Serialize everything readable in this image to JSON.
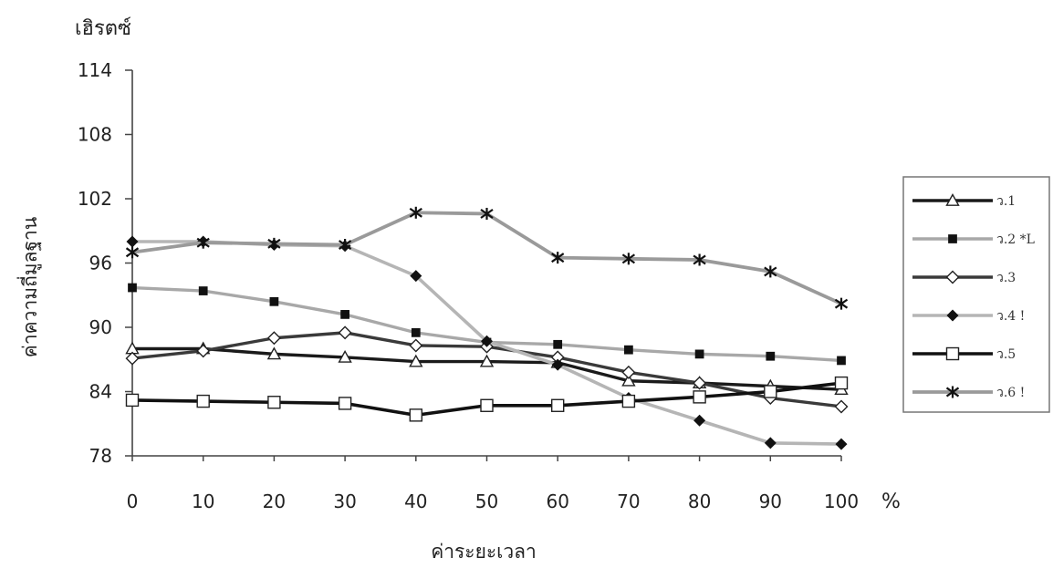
{
  "chart_data": {
    "type": "line",
    "title": "",
    "unit_label": "เฮิรตซ์",
    "ylabel": "ค่าความถี่มูลฐาน",
    "xlabel": "ค่าระยะเวลา",
    "x_unit": "%",
    "x": [
      0,
      10,
      20,
      30,
      40,
      50,
      60,
      70,
      80,
      90,
      100
    ],
    "xlim": [
      0,
      100
    ],
    "ylim": [
      78,
      114
    ],
    "yticks": [
      78,
      84,
      90,
      96,
      102,
      108,
      114
    ],
    "xticks": [
      0,
      10,
      20,
      30,
      40,
      50,
      60,
      70,
      80,
      90,
      100
    ],
    "grid": false,
    "legend_position": "right",
    "series": [
      {
        "name": "ว.1",
        "color": "#1a1a1a",
        "marker": "triangle-open",
        "values": [
          88,
          88,
          87.5,
          87.2,
          86.8,
          86.8,
          86.7,
          85,
          84.8,
          84.5,
          84.2
        ]
      },
      {
        "name": "ว.2 *L",
        "color": "#a8a8a8",
        "marker": "square-filled",
        "values": [
          93.7,
          93.4,
          92.4,
          91.2,
          89.5,
          88.6,
          88.4,
          87.9,
          87.5,
          87.3,
          86.9
        ]
      },
      {
        "name": "ว.3",
        "color": "#3a3a3a",
        "marker": "diamond-open",
        "values": [
          87.1,
          87.8,
          89,
          89.5,
          88.3,
          88.2,
          87.2,
          85.8,
          84.8,
          83.4,
          82.6
        ]
      },
      {
        "name": "ว.4 !",
        "color": "#b5b5b5",
        "marker": "diamond-filled",
        "values": [
          98,
          98,
          97.7,
          97.6,
          94.8,
          88.7,
          86.5,
          83.4,
          81.3,
          79.2,
          79.1
        ]
      },
      {
        "name": "ว.5",
        "color": "#111111",
        "marker": "square-open",
        "values": [
          83.2,
          83.1,
          83,
          82.9,
          81.8,
          82.7,
          82.7,
          83.1,
          83.5,
          84,
          84.8
        ]
      },
      {
        "name": "ว.6 !",
        "color": "#9a9a9a",
        "marker": "asterisk",
        "values": [
          97,
          97.9,
          97.8,
          97.7,
          100.7,
          100.6,
          96.5,
          96.4,
          96.3,
          95.2,
          92.2
        ]
      }
    ]
  }
}
